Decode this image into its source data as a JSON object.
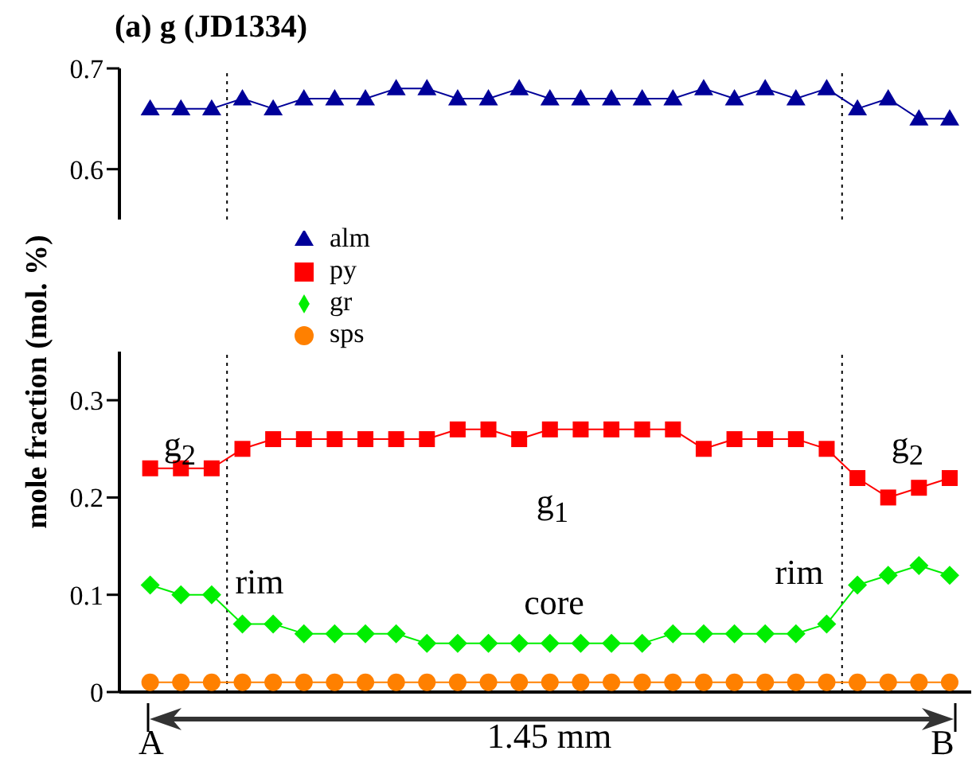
{
  "chart_data": [
    {
      "type": "line",
      "title": "(a) g (JD1334)",
      "categories": [
        null,
        null,
        null,
        null,
        null,
        null,
        null,
        null,
        null,
        null,
        null,
        null,
        null,
        null,
        null,
        null,
        null,
        null,
        null,
        null,
        null,
        null,
        null,
        null,
        null,
        null,
        null
      ],
      "series": [
        {
          "name": "alm",
          "color": "#000099",
          "marker": "triangle",
          "values": [
            0.66,
            0.66,
            0.66,
            0.67,
            0.66,
            0.67,
            0.67,
            0.67,
            0.68,
            0.68,
            0.67,
            0.67,
            0.68,
            0.67,
            0.67,
            0.67,
            0.67,
            0.67,
            0.68,
            0.67,
            0.68,
            0.67,
            0.68,
            0.66,
            0.67,
            0.65,
            0.65
          ]
        }
      ],
      "ylim": [
        0.55,
        0.7
      ],
      "yticks": [
        0.6,
        0.7
      ],
      "tick_labels": "y",
      "grid": false,
      "legend": "bottom left"
    },
    {
      "type": "line",
      "ylabel": "mole fraction (mol. %)",
      "categories": [
        null,
        null,
        null,
        null,
        null,
        null,
        null,
        null,
        null,
        null,
        null,
        null,
        null,
        null,
        null,
        null,
        null,
        null,
        null,
        null,
        null,
        null,
        null,
        null,
        null,
        null,
        null
      ],
      "series": [
        {
          "name": "py",
          "color": "#ff0000",
          "marker": "square",
          "values": [
            0.23,
            0.23,
            0.23,
            0.25,
            0.26,
            0.26,
            0.26,
            0.26,
            0.26,
            0.26,
            0.27,
            0.27,
            0.26,
            0.27,
            0.27,
            0.27,
            0.27,
            0.27,
            0.25,
            0.26,
            0.26,
            0.26,
            0.25,
            0.22,
            0.2,
            0.21,
            0.22
          ]
        },
        {
          "name": "gr",
          "color": "#00ee00",
          "marker": "diamond",
          "values": [
            0.11,
            0.1,
            0.1,
            0.07,
            0.07,
            0.06,
            0.06,
            0.06,
            0.06,
            0.05,
            0.05,
            0.05,
            0.05,
            0.05,
            0.05,
            0.05,
            0.05,
            0.06,
            0.06,
            0.06,
            0.06,
            0.06,
            0.07,
            0.11,
            0.12,
            0.13,
            0.12
          ]
        },
        {
          "name": "sps",
          "color": "#ff8000",
          "marker": "circle",
          "values": [
            0.01,
            0.01,
            0.01,
            0.01,
            0.01,
            0.01,
            0.01,
            0.01,
            0.01,
            0.01,
            0.01,
            0.01,
            0.01,
            0.01,
            0.01,
            0.01,
            0.01,
            0.01,
            0.01,
            0.01,
            0.01,
            0.01,
            0.01,
            0.01,
            0.01,
            0.01,
            0.01
          ]
        }
      ],
      "ylim": [
        0,
        0.35
      ],
      "yticks": [
        0,
        0.1,
        0.2,
        0.3
      ],
      "tick_labels": "y",
      "grid": false,
      "legend": "top left",
      "annotations": [
        "g$_{2}$",
        "g$_{1}$",
        "g$_{2}$",
        "rim",
        "core",
        "rim",
        "A",
        "B",
        "1.45 mm"
      ]
    }
  ]
}
